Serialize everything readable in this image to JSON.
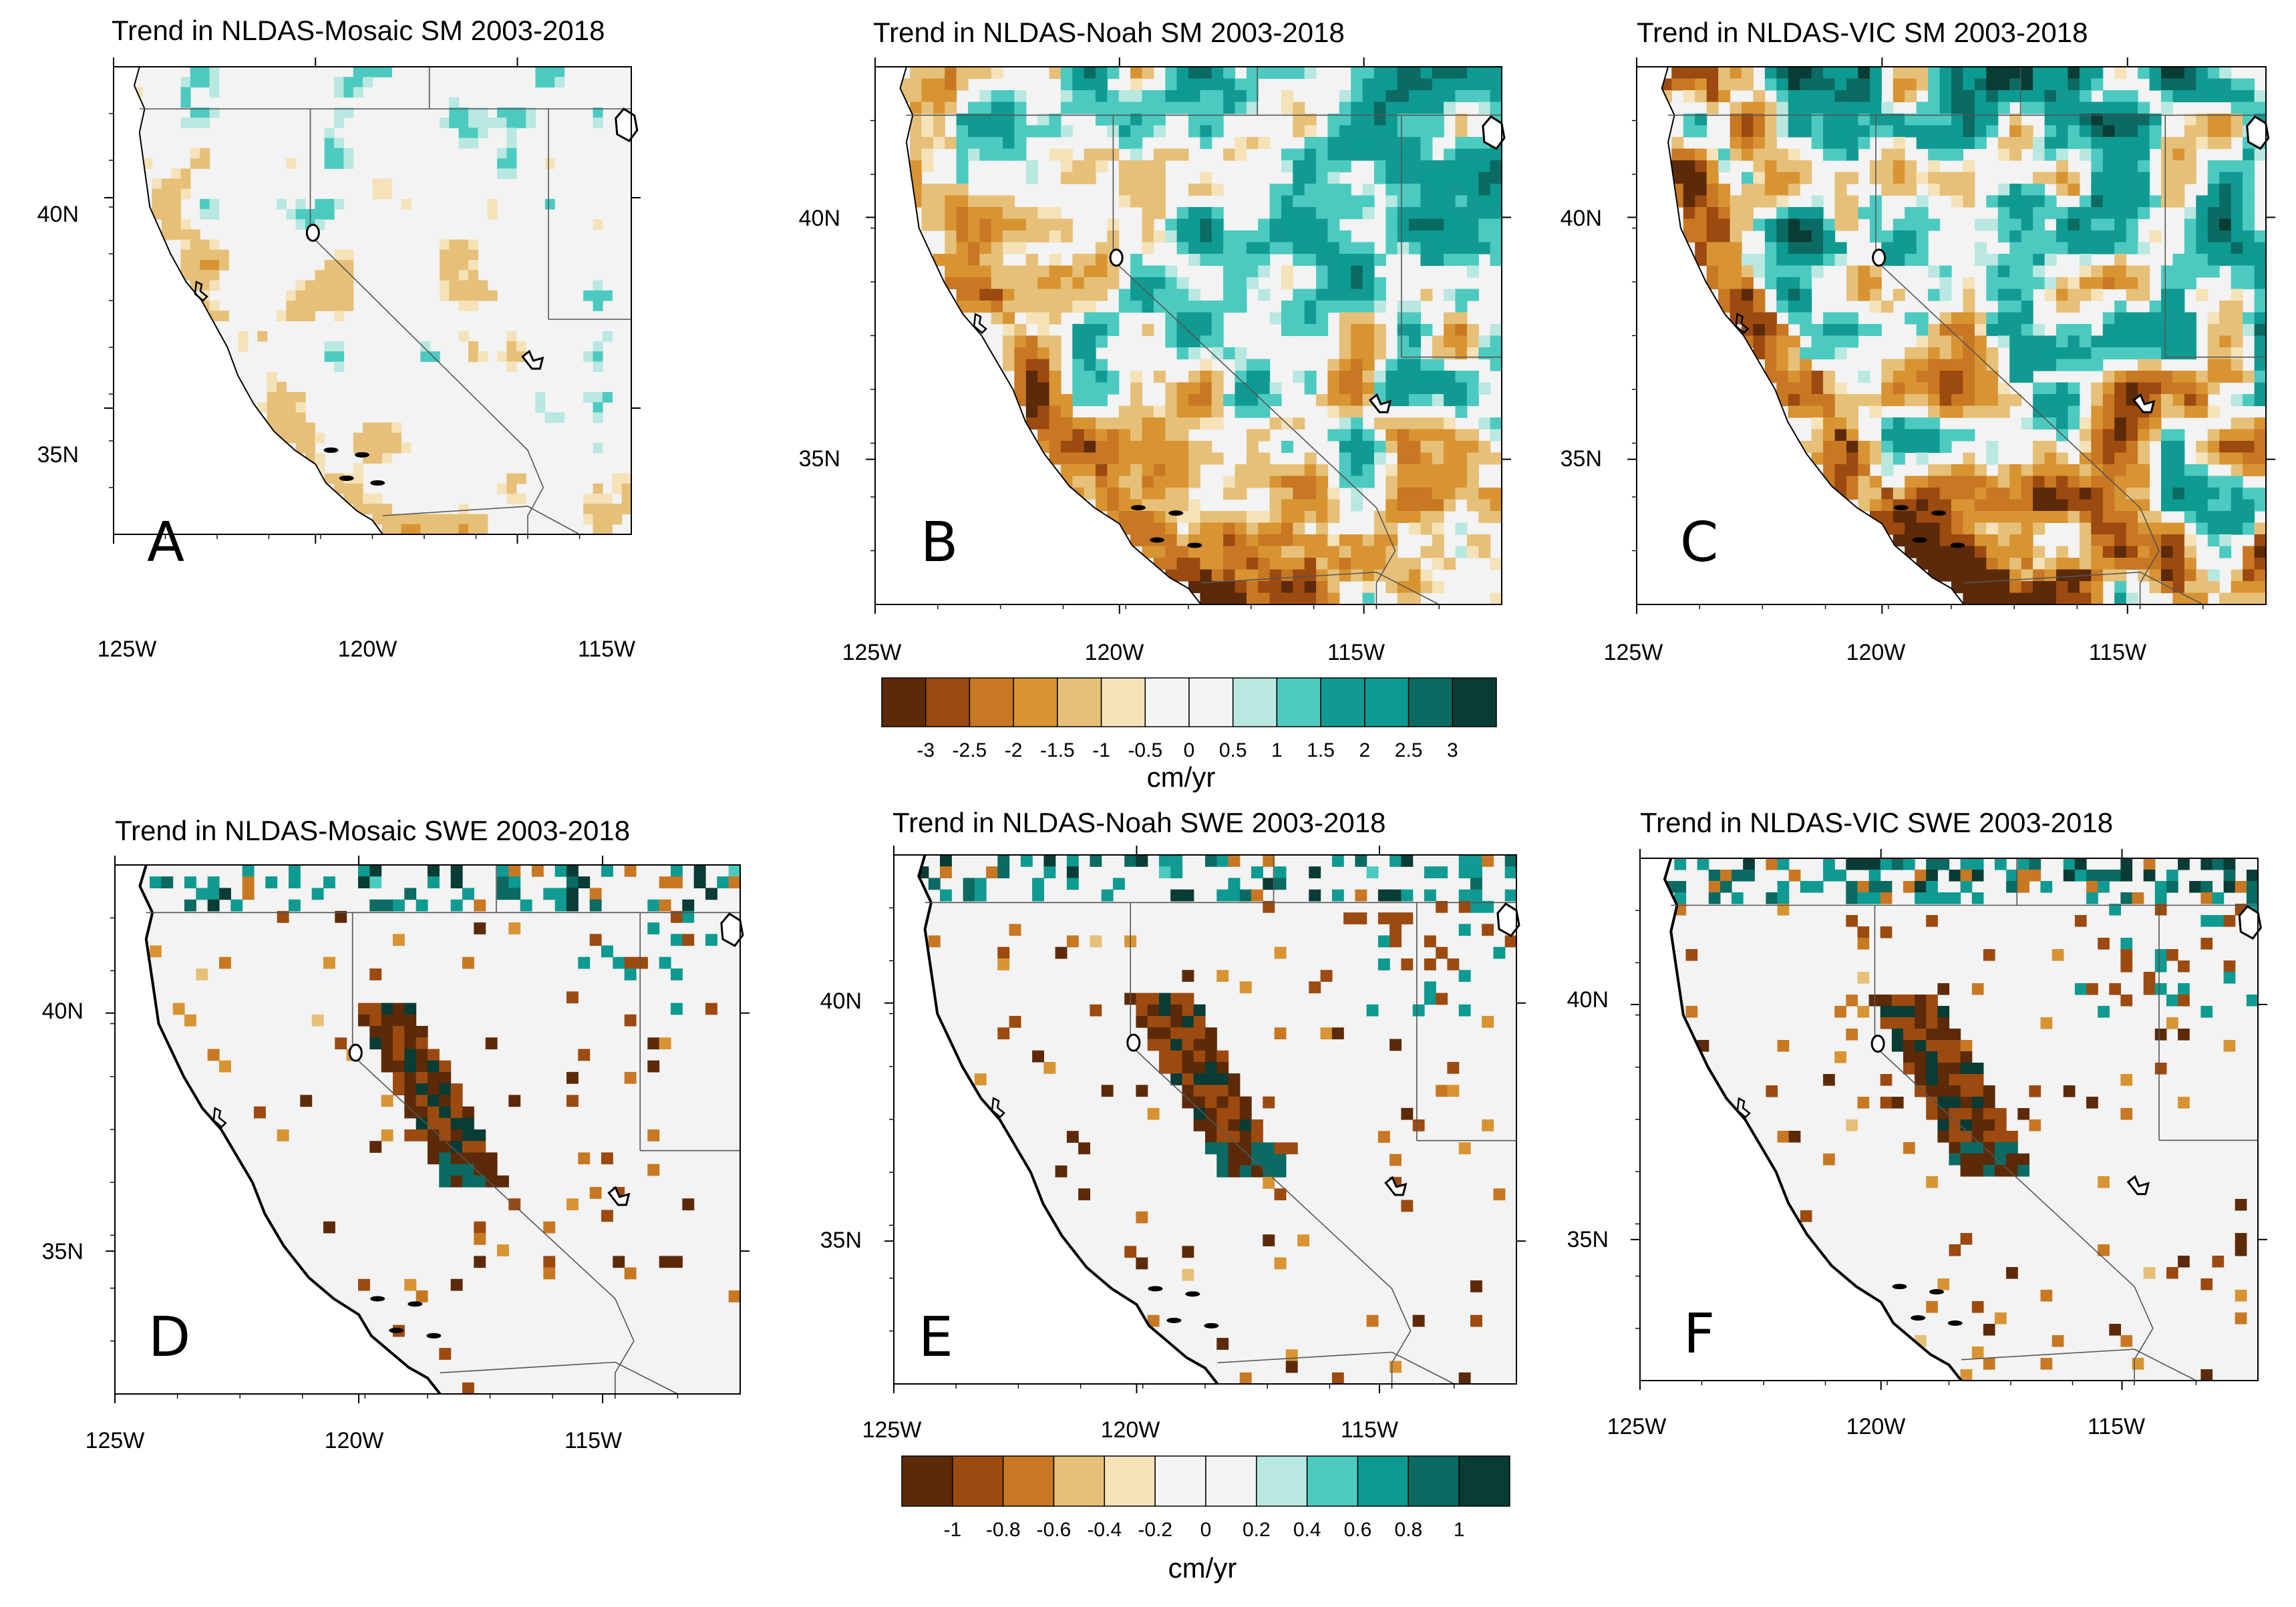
{
  "figure": {
    "colormap": {
      "brown_to_teal": [
        "#5c2a08",
        "#9c4a10",
        "#c87822",
        "#d89432",
        "#e6c078",
        "#f5e2b8",
        "#f4f4f4",
        "#f4f4f4",
        "#b8e8e0",
        "#4ccac0",
        "#119a92",
        "#0d9a90",
        "#0b6a62",
        "#083c34"
      ]
    },
    "colors": {
      "land": "#f3f3f3",
      "missing": "#c8c8c8",
      "border": "#555555",
      "frame": "#000000",
      "coast": "#000000"
    }
  },
  "panels": [
    {
      "id": "A",
      "letter": "A",
      "title": "Trend in NLDAS-Mosaic SM 2003-2018",
      "variable": "SM",
      "model": "Mosaic",
      "intensity": 0.35,
      "x_ticks": [
        "125W",
        "120W",
        "115W"
      ],
      "y_ticks": [
        "40N",
        "35N"
      ]
    },
    {
      "id": "B",
      "letter": "B",
      "title": "Trend in NLDAS-Noah SM 2003-2018",
      "variable": "SM",
      "model": "Noah",
      "intensity": 1.0,
      "x_ticks": [
        "125W",
        "120W",
        "115W"
      ],
      "y_ticks": [
        "40N",
        "35N"
      ]
    },
    {
      "id": "C",
      "letter": "C",
      "title": "Trend in NLDAS-VIC SM 2003-2018",
      "variable": "SM",
      "model": "VIC",
      "intensity": 1.4,
      "x_ticks": [
        "125W",
        "120W",
        "115W"
      ],
      "y_ticks": [
        "40N",
        "35N"
      ]
    },
    {
      "id": "D",
      "letter": "D",
      "title": "Trend in NLDAS-Mosaic SWE 2003-2018",
      "variable": "SWE",
      "model": "Mosaic",
      "intensity": 0.8,
      "x_ticks": [
        "125W",
        "120W",
        "115W"
      ],
      "y_ticks": [
        "40N",
        "35N"
      ]
    },
    {
      "id": "E",
      "letter": "E",
      "title": "Trend in NLDAS-Noah SWE 2003-2018",
      "variable": "SWE",
      "model": "Noah",
      "intensity": 1.0,
      "x_ticks": [
        "125W",
        "120W",
        "115W"
      ],
      "y_ticks": [
        "40N",
        "35N"
      ]
    },
    {
      "id": "F",
      "letter": "F",
      "title": "Trend in NLDAS-VIC SWE 2003-2018",
      "variable": "SWE",
      "model": "VIC",
      "intensity": 1.2,
      "x_ticks": [
        "125W",
        "120W",
        "115W"
      ],
      "y_ticks": [
        "40N",
        "35N"
      ]
    }
  ],
  "colorbars": [
    {
      "id": "sm",
      "unit": "cm/yr",
      "labels": [
        "-3",
        "-2.5",
        "-2",
        "-1.5",
        "-1",
        "-0.5",
        "0",
        "0.5",
        "1",
        "1.5",
        "2",
        "2.5",
        "3"
      ]
    },
    {
      "id": "swe",
      "unit": "cm/yr",
      "labels": [
        "-1",
        "-0.8",
        "-0.6",
        "-0.4",
        "-0.2",
        "0",
        "0.2",
        "0.4",
        "0.6",
        "0.8",
        "1"
      ]
    }
  ]
}
